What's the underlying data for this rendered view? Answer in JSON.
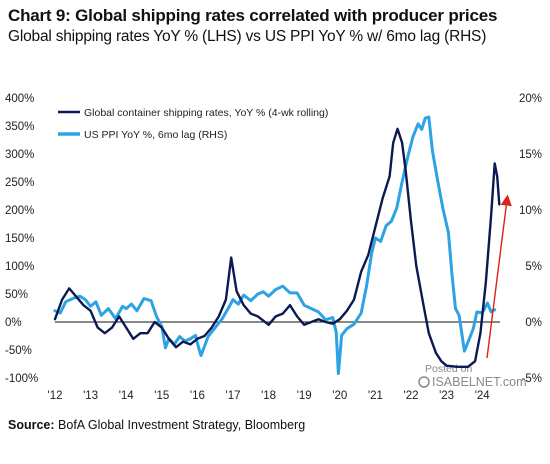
{
  "title": "Chart 9: Global shipping rates correlated with producer prices",
  "subtitle": "Global shipping rates YoY % (LHS) vs US PPI YoY % w/ 6mo lag (RHS)",
  "source": {
    "label": "Source:",
    "text": "BofA Global Investment Strategy, Bloomberg"
  },
  "watermark": {
    "line1": "Posted on",
    "line2": "ISABELNET.com"
  },
  "colors": {
    "shipping": "#0c1a52",
    "ppi": "#2ea3e3",
    "arrow": "#e0201b",
    "zero_line": "#111111"
  },
  "chart_data": {
    "type": "line",
    "legend_position": "top-left",
    "grid": false,
    "y_left": {
      "ylim": [
        -100,
        400
      ],
      "ticks": [
        "400%",
        "350%",
        "300%",
        "250%",
        "200%",
        "150%",
        "100%",
        "50%",
        "0%",
        "-50%",
        "-100%"
      ]
    },
    "y_right": {
      "ylim": [
        -5,
        20
      ],
      "ticks": [
        "20%",
        "15%",
        "10%",
        "5%",
        "0%",
        "-5%"
      ]
    },
    "x_axis": {
      "ticks": [
        "'12",
        "'13",
        "'14",
        "'15",
        "'16",
        "'17",
        "'18",
        "'19",
        "'20",
        "'21",
        "'22",
        "'23",
        "'24"
      ]
    },
    "series": [
      {
        "name": "Global container shipping rates, YoY % (4-wk rolling)",
        "axis": "left",
        "points": [
          [
            2012.0,
            5
          ],
          [
            2012.2,
            40
          ],
          [
            2012.4,
            60
          ],
          [
            2012.6,
            45
          ],
          [
            2012.8,
            30
          ],
          [
            2013.0,
            20
          ],
          [
            2013.2,
            -10
          ],
          [
            2013.4,
            -20
          ],
          [
            2013.6,
            -10
          ],
          [
            2013.8,
            10
          ],
          [
            2014.0,
            -10
          ],
          [
            2014.2,
            -30
          ],
          [
            2014.4,
            -20
          ],
          [
            2014.6,
            -20
          ],
          [
            2014.8,
            0
          ],
          [
            2015.0,
            -10
          ],
          [
            2015.2,
            -30
          ],
          [
            2015.4,
            -45
          ],
          [
            2015.6,
            -35
          ],
          [
            2015.8,
            -40
          ],
          [
            2016.0,
            -30
          ],
          [
            2016.2,
            -25
          ],
          [
            2016.4,
            -10
          ],
          [
            2016.6,
            10
          ],
          [
            2016.8,
            40
          ],
          [
            2016.95,
            115
          ],
          [
            2017.1,
            55
          ],
          [
            2017.3,
            30
          ],
          [
            2017.5,
            15
          ],
          [
            2017.7,
            10
          ],
          [
            2018.0,
            -5
          ],
          [
            2018.2,
            10
          ],
          [
            2018.4,
            15
          ],
          [
            2018.6,
            30
          ],
          [
            2018.8,
            10
          ],
          [
            2019.0,
            -5
          ],
          [
            2019.2,
            0
          ],
          [
            2019.4,
            5
          ],
          [
            2019.6,
            0
          ],
          [
            2019.8,
            -3
          ],
          [
            2020.0,
            5
          ],
          [
            2020.2,
            20
          ],
          [
            2020.4,
            40
          ],
          [
            2020.6,
            90
          ],
          [
            2020.8,
            120
          ],
          [
            2021.0,
            170
          ],
          [
            2021.2,
            220
          ],
          [
            2021.4,
            260
          ],
          [
            2021.5,
            320
          ],
          [
            2021.62,
            345
          ],
          [
            2021.75,
            320
          ],
          [
            2021.85,
            270
          ],
          [
            2022.0,
            180
          ],
          [
            2022.15,
            100
          ],
          [
            2022.35,
            30
          ],
          [
            2022.5,
            -20
          ],
          [
            2022.7,
            -55
          ],
          [
            2022.85,
            -70
          ],
          [
            2023.0,
            -78
          ],
          [
            2023.3,
            -80
          ],
          [
            2023.6,
            -80
          ],
          [
            2023.8,
            -70
          ],
          [
            2023.95,
            -20
          ],
          [
            2024.1,
            70
          ],
          [
            2024.25,
            190
          ],
          [
            2024.35,
            283
          ],
          [
            2024.42,
            260
          ],
          [
            2024.48,
            210
          ]
        ]
      },
      {
        "name": "US PPI YoY %, 6mo lag (RHS)",
        "axis": "right",
        "points": [
          [
            2012.0,
            1.0
          ],
          [
            2012.15,
            0.8
          ],
          [
            2012.3,
            1.8
          ],
          [
            2012.5,
            2.1
          ],
          [
            2012.7,
            2.3
          ],
          [
            2012.85,
            2.0
          ],
          [
            2013.0,
            1.4
          ],
          [
            2013.15,
            1.8
          ],
          [
            2013.3,
            0.6
          ],
          [
            2013.5,
            1.2
          ],
          [
            2013.7,
            0.3
          ],
          [
            2013.9,
            1.4
          ],
          [
            2014.0,
            1.2
          ],
          [
            2014.15,
            1.6
          ],
          [
            2014.3,
            1.0
          ],
          [
            2014.5,
            2.1
          ],
          [
            2014.7,
            1.9
          ],
          [
            2014.85,
            0.5
          ],
          [
            2015.0,
            -0.4
          ],
          [
            2015.1,
            -2.3
          ],
          [
            2015.2,
            -1.5
          ],
          [
            2015.35,
            -2.0
          ],
          [
            2015.5,
            -1.3
          ],
          [
            2015.65,
            -1.7
          ],
          [
            2015.8,
            -1.5
          ],
          [
            2015.95,
            -1.2
          ],
          [
            2016.0,
            -1.9
          ],
          [
            2016.1,
            -3.0
          ],
          [
            2016.3,
            -1.3
          ],
          [
            2016.5,
            -0.5
          ],
          [
            2016.7,
            0.3
          ],
          [
            2016.9,
            1.4
          ],
          [
            2017.0,
            2.0
          ],
          [
            2017.15,
            1.6
          ],
          [
            2017.3,
            2.4
          ],
          [
            2017.5,
            1.9
          ],
          [
            2017.7,
            2.5
          ],
          [
            2017.85,
            2.7
          ],
          [
            2018.0,
            2.3
          ],
          [
            2018.2,
            2.9
          ],
          [
            2018.4,
            3.2
          ],
          [
            2018.6,
            2.6
          ],
          [
            2018.8,
            2.6
          ],
          [
            2019.0,
            1.5
          ],
          [
            2019.2,
            1.2
          ],
          [
            2019.4,
            0.9
          ],
          [
            2019.6,
            0.2
          ],
          [
            2019.8,
            0.4
          ],
          [
            2019.9,
            -0.9
          ],
          [
            2019.96,
            -4.6
          ],
          [
            2020.05,
            -1.2
          ],
          [
            2020.2,
            -0.6
          ],
          [
            2020.4,
            -0.2
          ],
          [
            2020.6,
            0.8
          ],
          [
            2020.75,
            3.2
          ],
          [
            2020.9,
            6.2
          ],
          [
            2021.0,
            7.5
          ],
          [
            2021.15,
            7.2
          ],
          [
            2021.3,
            8.6
          ],
          [
            2021.45,
            9.0
          ],
          [
            2021.6,
            10.2
          ],
          [
            2021.75,
            12.5
          ],
          [
            2021.9,
            14.6
          ],
          [
            2022.05,
            16.5
          ],
          [
            2022.2,
            17.7
          ],
          [
            2022.3,
            17.2
          ],
          [
            2022.4,
            18.2
          ],
          [
            2022.5,
            18.3
          ],
          [
            2022.6,
            15.3
          ],
          [
            2022.75,
            12.6
          ],
          [
            2022.9,
            10.1
          ],
          [
            2023.05,
            8.0
          ],
          [
            2023.15,
            4.3
          ],
          [
            2023.25,
            1.2
          ],
          [
            2023.35,
            0.6
          ],
          [
            2023.5,
            -2.6
          ],
          [
            2023.6,
            -1.8
          ],
          [
            2023.75,
            -0.6
          ],
          [
            2023.85,
            0.9
          ],
          [
            2024.0,
            0.8
          ],
          [
            2024.15,
            1.7
          ],
          [
            2024.25,
            0.9
          ],
          [
            2024.35,
            1.1
          ]
        ]
      }
    ]
  }
}
